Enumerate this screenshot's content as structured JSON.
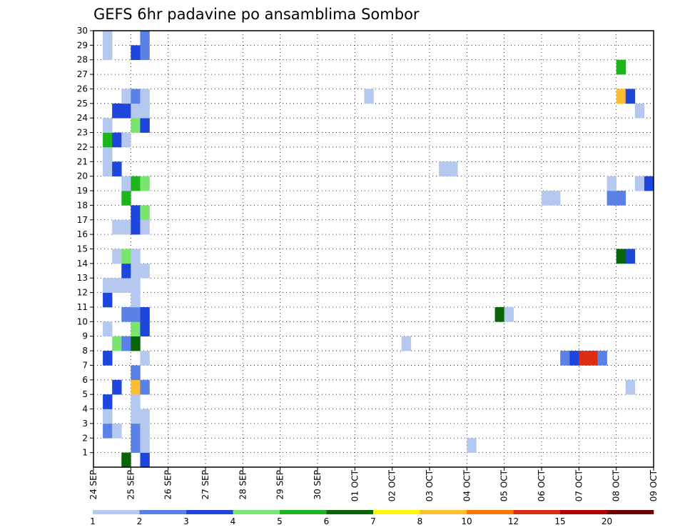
{
  "chart_data": {
    "type": "heatmap",
    "title": "GEFS 6hr padavine po ansamblima Sombor",
    "xlabel": "",
    "ylabel": "",
    "x_tick_labels": [
      "24 SEP",
      "25 SEP",
      "26 SEP",
      "27 SEP",
      "28 SEP",
      "29 SEP",
      "30 SEP",
      "01 OCT",
      "02 OCT",
      "03 OCT",
      "04 OCT",
      "05 OCT",
      "06 OCT",
      "07 OCT",
      "08 OCT",
      "09 OCT"
    ],
    "y_tick_labels": [
      "1",
      "2",
      "3",
      "4",
      "5",
      "6",
      "7",
      "8",
      "9",
      "10",
      "11",
      "12",
      "13",
      "14",
      "15",
      "16",
      "17",
      "18",
      "19",
      "20",
      "21",
      "22",
      "23",
      "24",
      "25",
      "26",
      "27",
      "28",
      "29",
      "30"
    ],
    "x_range": [
      "24 SEP 00",
      "09 OCT 00"
    ],
    "y_range": [
      0,
      30
    ],
    "time_step_hours": 6,
    "grid": true,
    "legend": {
      "placement": "bottom",
      "colors": [
        "#b4c8f0",
        "#5a82e6",
        "#1e46dc",
        "#78e66e",
        "#1eb41e",
        "#0a640a",
        "#fffa00",
        "#ffbe32",
        "#ff7800",
        "#dc2d14",
        "#b40000",
        "#6e0000"
      ],
      "labels": [
        "1",
        "2",
        "3",
        "4",
        "5",
        "6",
        "7",
        "8",
        "10",
        "12",
        "15",
        "20"
      ]
    },
    "bins": [
      "1-2",
      "2-3",
      "3-4",
      "4-5",
      "5-6",
      "6-7",
      "7-8",
      "8-10",
      "10-12",
      "12-15",
      "15-20",
      ">20"
    ],
    "cells": [
      {
        "member": 0,
        "date": "24 SEP 18",
        "bin": "6-7"
      },
      {
        "member": 0,
        "date": "25 SEP 06",
        "bin": "3-4"
      },
      {
        "member": 1,
        "date": "25 SEP 00",
        "bin": "2-3"
      },
      {
        "member": 1,
        "date": "25 SEP 06",
        "bin": "1-2"
      },
      {
        "member": 1,
        "date": "04 OCT 00",
        "bin": "1-2"
      },
      {
        "member": 2,
        "date": "24 SEP 06",
        "bin": "2-3"
      },
      {
        "member": 2,
        "date": "24 SEP 12",
        "bin": "1-2"
      },
      {
        "member": 2,
        "date": "25 SEP 00",
        "bin": "2-3"
      },
      {
        "member": 2,
        "date": "25 SEP 06",
        "bin": "1-2"
      },
      {
        "member": 3,
        "date": "24 SEP 06",
        "bin": "1-2"
      },
      {
        "member": 3,
        "date": "25 SEP 00",
        "bin": "1-2"
      },
      {
        "member": 3,
        "date": "25 SEP 06",
        "bin": "1-2"
      },
      {
        "member": 4,
        "date": "24 SEP 06",
        "bin": "3-4"
      },
      {
        "member": 4,
        "date": "25 SEP 00",
        "bin": "1-2"
      },
      {
        "member": 5,
        "date": "24 SEP 12",
        "bin": "3-4"
      },
      {
        "member": 5,
        "date": "25 SEP 00",
        "bin": "8-10"
      },
      {
        "member": 5,
        "date": "25 SEP 06",
        "bin": "2-3"
      },
      {
        "member": 5,
        "date": "08 OCT 06",
        "bin": "1-2"
      },
      {
        "member": 6,
        "date": "25 SEP 00",
        "bin": "2-3"
      },
      {
        "member": 7,
        "date": "24 SEP 06",
        "bin": "3-4"
      },
      {
        "member": 7,
        "date": "25 SEP 06",
        "bin": "1-2"
      },
      {
        "member": 7,
        "date": "06 OCT 12",
        "bin": "2-3"
      },
      {
        "member": 7,
        "date": "06 OCT 18",
        "bin": "3-4"
      },
      {
        "member": 7,
        "date": "07 OCT 00",
        "bin": "12-15"
      },
      {
        "member": 7,
        "date": "07 OCT 06",
        "bin": "12-15"
      },
      {
        "member": 7,
        "date": "07 OCT 12",
        "bin": "2-3"
      },
      {
        "member": 8,
        "date": "24 SEP 12",
        "bin": "4-5"
      },
      {
        "member": 8,
        "date": "24 SEP 18",
        "bin": "2-3"
      },
      {
        "member": 8,
        "date": "25 SEP 00",
        "bin": "6-7"
      },
      {
        "member": 8,
        "date": "02 OCT 06",
        "bin": "1-2"
      },
      {
        "member": 9,
        "date": "24 SEP 06",
        "bin": "1-2"
      },
      {
        "member": 9,
        "date": "25 SEP 00",
        "bin": "4-5"
      },
      {
        "member": 9,
        "date": "25 SEP 06",
        "bin": "3-4"
      },
      {
        "member": 10,
        "date": "24 SEP 18",
        "bin": "2-3"
      },
      {
        "member": 10,
        "date": "25 SEP 00",
        "bin": "2-3"
      },
      {
        "member": 10,
        "date": "25 SEP 06",
        "bin": "3-4"
      },
      {
        "member": 10,
        "date": "04 OCT 18",
        "bin": "6-7"
      },
      {
        "member": 10,
        "date": "05 OCT 00",
        "bin": "1-2"
      },
      {
        "member": 11,
        "date": "24 SEP 06",
        "bin": "3-4"
      },
      {
        "member": 11,
        "date": "25 SEP 00",
        "bin": "1-2"
      },
      {
        "member": 12,
        "date": "24 SEP 06",
        "bin": "1-2"
      },
      {
        "member": 12,
        "date": "24 SEP 12",
        "bin": "1-2"
      },
      {
        "member": 12,
        "date": "24 SEP 18",
        "bin": "1-2"
      },
      {
        "member": 12,
        "date": "25 SEP 00",
        "bin": "1-2"
      },
      {
        "member": 13,
        "date": "24 SEP 18",
        "bin": "3-4"
      },
      {
        "member": 13,
        "date": "25 SEP 00",
        "bin": "1-2"
      },
      {
        "member": 13,
        "date": "25 SEP 06",
        "bin": "1-2"
      },
      {
        "member": 14,
        "date": "24 SEP 12",
        "bin": "1-2"
      },
      {
        "member": 14,
        "date": "24 SEP 18",
        "bin": "4-5"
      },
      {
        "member": 14,
        "date": "25 SEP 00",
        "bin": "1-2"
      },
      {
        "member": 14,
        "date": "08 OCT 00",
        "bin": "6-7"
      },
      {
        "member": 14,
        "date": "08 OCT 06",
        "bin": "3-4"
      },
      {
        "member": 16,
        "date": "24 SEP 12",
        "bin": "1-2"
      },
      {
        "member": 16,
        "date": "24 SEP 18",
        "bin": "1-2"
      },
      {
        "member": 16,
        "date": "25 SEP 00",
        "bin": "3-4"
      },
      {
        "member": 16,
        "date": "25 SEP 06",
        "bin": "1-2"
      },
      {
        "member": 17,
        "date": "25 SEP 00",
        "bin": "3-4"
      },
      {
        "member": 17,
        "date": "25 SEP 06",
        "bin": "4-5"
      },
      {
        "member": 18,
        "date": "24 SEP 18",
        "bin": "5-6"
      },
      {
        "member": 18,
        "date": "06 OCT 00",
        "bin": "1-2"
      },
      {
        "member": 18,
        "date": "06 OCT 06",
        "bin": "1-2"
      },
      {
        "member": 18,
        "date": "07 OCT 18",
        "bin": "2-3"
      },
      {
        "member": 18,
        "date": "08 OCT 00",
        "bin": "2-3"
      },
      {
        "member": 19,
        "date": "24 SEP 18",
        "bin": "1-2"
      },
      {
        "member": 19,
        "date": "25 SEP 00",
        "bin": "5-6"
      },
      {
        "member": 19,
        "date": "25 SEP 06",
        "bin": "4-5"
      },
      {
        "member": 19,
        "date": "07 OCT 18",
        "bin": "1-2"
      },
      {
        "member": 19,
        "date": "08 OCT 12",
        "bin": "1-2"
      },
      {
        "member": 19,
        "date": "08 OCT 18",
        "bin": "3-4"
      },
      {
        "member": 20,
        "date": "24 SEP 06",
        "bin": "1-2"
      },
      {
        "member": 20,
        "date": "24 SEP 12",
        "bin": "3-4"
      },
      {
        "member": 20,
        "date": "03 OCT 06",
        "bin": "1-2"
      },
      {
        "member": 20,
        "date": "03 OCT 12",
        "bin": "1-2"
      },
      {
        "member": 21,
        "date": "24 SEP 06",
        "bin": "1-2"
      },
      {
        "member": 22,
        "date": "24 SEP 06",
        "bin": "5-6"
      },
      {
        "member": 22,
        "date": "24 SEP 12",
        "bin": "3-4"
      },
      {
        "member": 22,
        "date": "24 SEP 18",
        "bin": "1-2"
      },
      {
        "member": 23,
        "date": "24 SEP 06",
        "bin": "1-2"
      },
      {
        "member": 23,
        "date": "25 SEP 00",
        "bin": "4-5"
      },
      {
        "member": 23,
        "date": "25 SEP 06",
        "bin": "3-4"
      },
      {
        "member": 24,
        "date": "24 SEP 12",
        "bin": "3-4"
      },
      {
        "member": 24,
        "date": "24 SEP 18",
        "bin": "3-4"
      },
      {
        "member": 24,
        "date": "25 SEP 00",
        "bin": "1-2"
      },
      {
        "member": 24,
        "date": "25 SEP 06",
        "bin": "1-2"
      },
      {
        "member": 24,
        "date": "08 OCT 12",
        "bin": "1-2"
      },
      {
        "member": 25,
        "date": "24 SEP 18",
        "bin": "1-2"
      },
      {
        "member": 25,
        "date": "25 SEP 00",
        "bin": "2-3"
      },
      {
        "member": 25,
        "date": "25 SEP 06",
        "bin": "1-2"
      },
      {
        "member": 25,
        "date": "01 OCT 06",
        "bin": "1-2"
      },
      {
        "member": 25,
        "date": "08 OCT 00",
        "bin": "8-10"
      },
      {
        "member": 25,
        "date": "08 OCT 06",
        "bin": "3-4"
      },
      {
        "member": 27,
        "date": "08 OCT 00",
        "bin": "5-6"
      },
      {
        "member": 28,
        "date": "24 SEP 06",
        "bin": "1-2"
      },
      {
        "member": 28,
        "date": "25 SEP 00",
        "bin": "3-4"
      },
      {
        "member": 28,
        "date": "25 SEP 06",
        "bin": "2-3"
      },
      {
        "member": 29,
        "date": "24 SEP 06",
        "bin": "1-2"
      },
      {
        "member": 29,
        "date": "25 SEP 06",
        "bin": "2-3"
      }
    ]
  }
}
